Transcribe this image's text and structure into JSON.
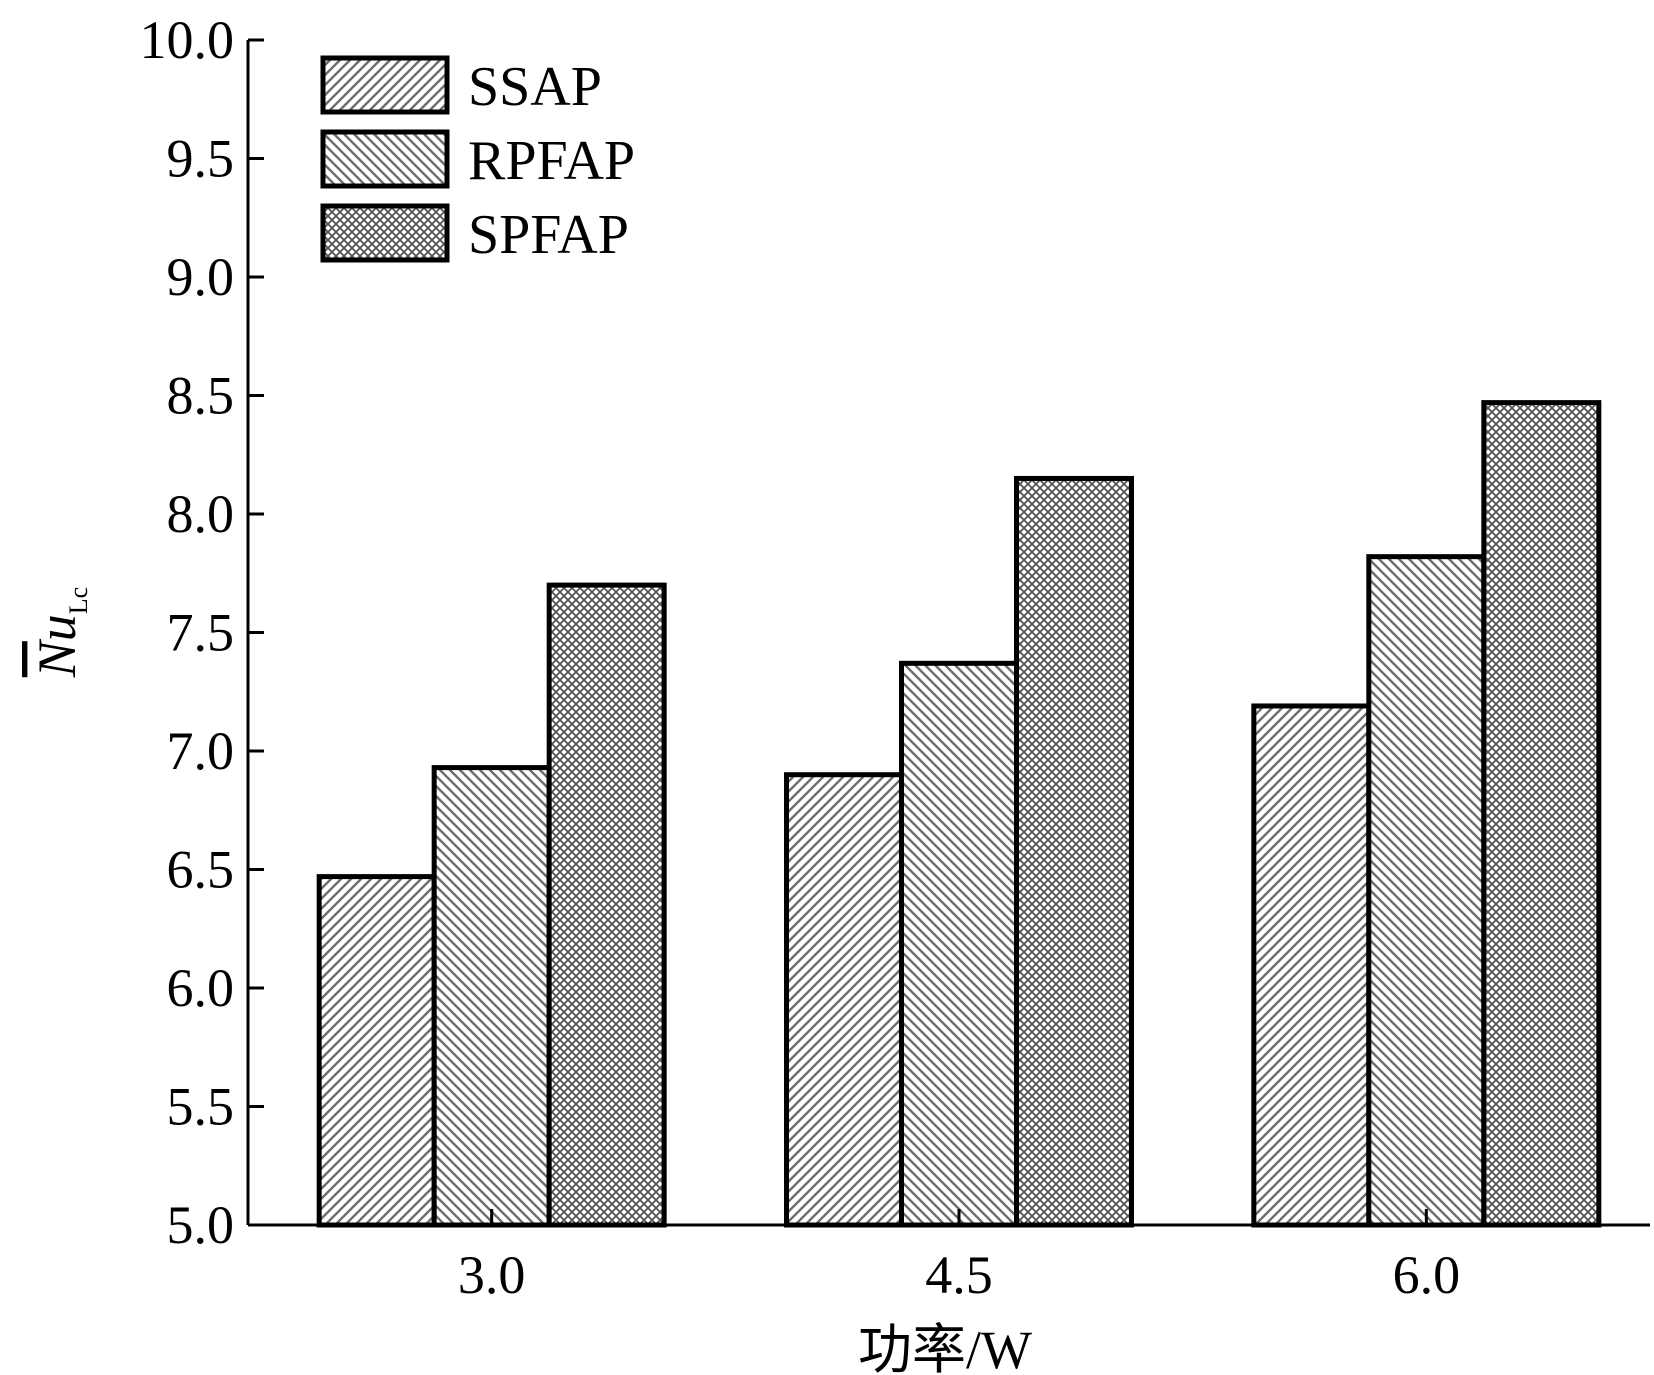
{
  "chart_data": {
    "type": "bar",
    "categories": [
      "3.0",
      "4.5",
      "6.0"
    ],
    "series": [
      {
        "name": "SSAP",
        "values": [
          6.47,
          6.9,
          7.19
        ],
        "pattern": "hatch-diag-up"
      },
      {
        "name": "RPFAP",
        "values": [
          6.93,
          7.37,
          7.82
        ],
        "pattern": "hatch-diag-down"
      },
      {
        "name": "SPFAP",
        "values": [
          7.7,
          8.15,
          8.47
        ],
        "pattern": "crosshatch"
      }
    ],
    "title": "",
    "xlabel": "功率/W",
    "ylabel_main": "N",
    "ylabel_var": "u",
    "ylabel_sub": "Lc",
    "ylim": [
      5.0,
      10.0
    ],
    "yticks": [
      "5.0",
      "5.5",
      "6.0",
      "6.5",
      "7.0",
      "7.5",
      "8.0",
      "8.5",
      "9.0",
      "9.5",
      "10.0"
    ],
    "grid": false,
    "legend_position": "top-left",
    "colors": {
      "stroke": "#000000",
      "pattern_ink": "#6e6e6e",
      "background": "#ffffff"
    }
  }
}
